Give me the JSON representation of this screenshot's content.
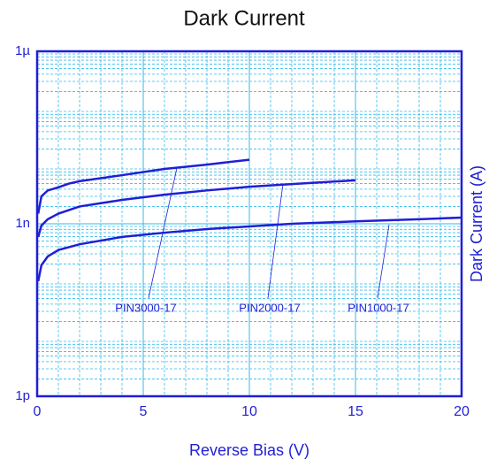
{
  "chart_data": {
    "type": "line",
    "title": "Dark Current",
    "xlabel": "Reverse Bias (V)",
    "ylabel": "Dark Current (A)",
    "xlim": [
      0,
      20
    ],
    "xticks": [
      0,
      5,
      10,
      15,
      20
    ],
    "ylim": [
      1e-12,
      1e-06
    ],
    "yscale": "log",
    "yticks": [
      {
        "value": 1e-12,
        "label": "1p"
      },
      {
        "value": 1e-09,
        "label": "1n"
      },
      {
        "value": 1e-06,
        "label": "1µ"
      }
    ],
    "grid": true,
    "series": [
      {
        "name": "PIN3000-17",
        "color": "#1f1fd6",
        "x": [
          0.05,
          0.2,
          0.5,
          1,
          1.5,
          2,
          4,
          6,
          8,
          10
        ],
        "values": [
          1.5e-09,
          3e-09,
          3.8e-09,
          4.3e-09,
          5e-09,
          5.5e-09,
          7e-09,
          9e-09,
          1.07e-08,
          1.3e-08
        ]
      },
      {
        "name": "PIN2000-17",
        "color": "#1f1fd6",
        "x": [
          0.05,
          0.2,
          0.5,
          1,
          2,
          4,
          6,
          8,
          10,
          12,
          15
        ],
        "values": [
          5.9e-10,
          9.3e-10,
          1.2e-09,
          1.5e-09,
          2e-09,
          2.6e-09,
          3.2e-09,
          3.8e-09,
          4.4e-09,
          4.9e-09,
          5.7e-09
        ]
      },
      {
        "name": "PIN1000-17",
        "color": "#1f1fd6",
        "x": [
          0.05,
          0.2,
          0.5,
          1,
          2,
          4,
          6,
          8,
          10,
          12,
          15,
          18,
          20
        ],
        "values": [
          1e-10,
          1.9e-10,
          2.7e-10,
          3.5e-10,
          4.4e-10,
          5.9e-10,
          7e-10,
          8.1e-10,
          9e-10,
          1e-09,
          1.1e-09,
          1.2e-09,
          1.28e-09
        ]
      }
    ]
  }
}
